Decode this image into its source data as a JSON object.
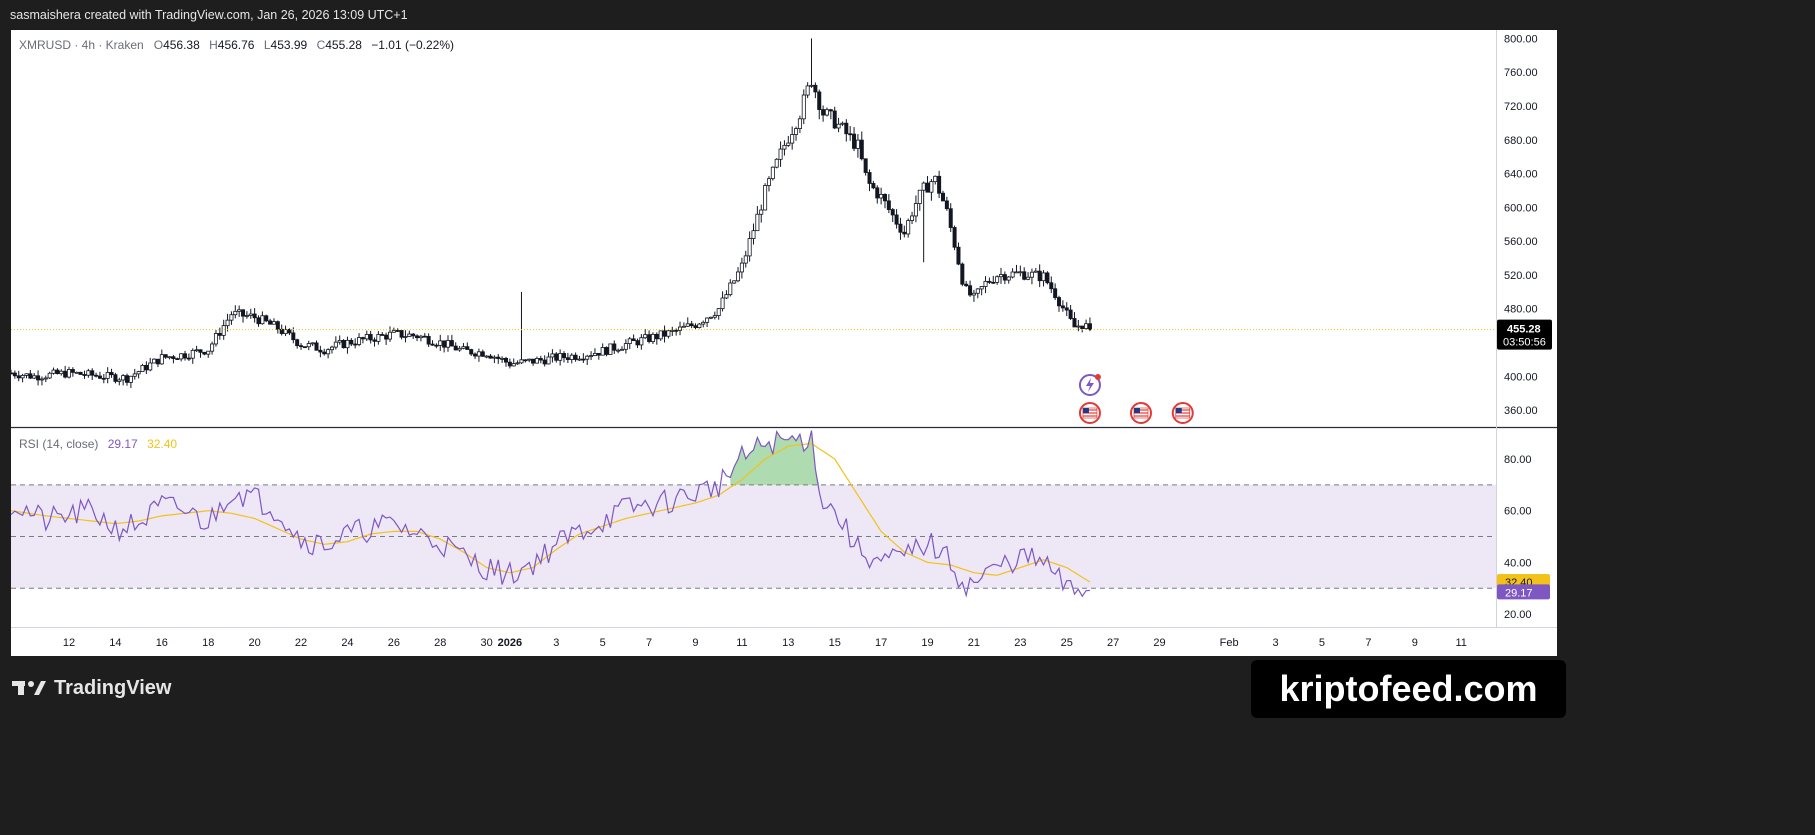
{
  "header": {
    "credit": "sasmaishera created with TradingView.com, Jan 26, 2026 13:09 UTC+1"
  },
  "legend": {
    "symbol": "XMRUSD · 4h · Kraken",
    "o_label": "O",
    "o": "456.38",
    "h_label": "H",
    "h": "456.76",
    "l_label": "L",
    "l": "453.99",
    "c_label": "C",
    "c": "455.28",
    "change": "−1.01 (−0.22%)"
  },
  "rsi_legend": {
    "label": "RSI (14, close)",
    "rsi": "29.17",
    "ma": "32.40"
  },
  "price_tag": {
    "price": "455.28",
    "countdown": "03:50:56"
  },
  "rsi_tags": {
    "ma": "32.40",
    "rsi": "29.17"
  },
  "footer": {
    "brand": "TradingView",
    "watermark": "kriptofeed.com"
  },
  "colors": {
    "candle": "#131722",
    "rsi_line": "#7e57c2",
    "rsi_ma": "#f2c21b",
    "rsi_band": "#ede7f6",
    "overbought_fill": "#4caf50",
    "price_line": "#f2c21b"
  },
  "icons": [
    "lightning-event-icon",
    "us-flag-event-icon"
  ],
  "chart_data": [
    {
      "type": "candlestick",
      "symbol": "XMRUSD",
      "ylim": [
        340,
        810
      ],
      "y_ticks": [
        "800.00",
        "760.00",
        "720.00",
        "680.00",
        "640.00",
        "600.00",
        "560.00",
        "520.00",
        "480.00",
        "400.00",
        "360.00"
      ],
      "x_ticks": [
        "12",
        "14",
        "16",
        "18",
        "20",
        "22",
        "24",
        "26",
        "28",
        "30",
        "2026",
        "3",
        "5",
        "7",
        "9",
        "11",
        "13",
        "15",
        "17",
        "19",
        "21",
        "23",
        "25",
        "27",
        "29",
        "Feb",
        "3",
        "5",
        "7",
        "9",
        "11",
        "13"
      ],
      "x_domain_days": [
        -20.5,
        43.5
      ],
      "series": [
        {
          "anchors": [
            [
              -20.5,
              404
            ],
            [
              -19.5,
              400
            ],
            [
              -18,
              404
            ],
            [
              -16.5,
              400
            ],
            [
              -15.5,
              398
            ],
            [
              -14,
              422
            ],
            [
              -13,
              426
            ],
            [
              -12,
              432
            ],
            [
              -11,
              474
            ],
            [
              -10,
              470
            ],
            [
              -9,
              457
            ],
            [
              -8,
              438
            ],
            [
              -7,
              432
            ],
            [
              -6,
              440
            ],
            [
              -5,
              445
            ],
            [
              -4,
              450
            ],
            [
              -3,
              448
            ],
            [
              -2,
              440
            ],
            [
              -1,
              430
            ],
            [
              0,
              428
            ],
            [
              1,
              415
            ],
            [
              2,
              418
            ],
            [
              3,
              422
            ],
            [
              4,
              425
            ],
            [
              5,
              430
            ],
            [
              6,
              438
            ],
            [
              7,
              445
            ],
            [
              8,
              452
            ],
            [
              9,
              462
            ],
            [
              10,
              480
            ],
            [
              11,
              530
            ],
            [
              12,
              618
            ],
            [
              12.8,
              672
            ],
            [
              13.5,
              712
            ],
            [
              14,
              752
            ],
            [
              14.5,
              712
            ],
            [
              15,
              702
            ],
            [
              16,
              672
            ],
            [
              16.4,
              630
            ],
            [
              17,
              612
            ],
            [
              17.5,
              590
            ],
            [
              18,
              570
            ],
            [
              18.4,
              600
            ],
            [
              18.8,
              620
            ],
            [
              19.3,
              635
            ],
            [
              19.8,
              598
            ],
            [
              20.2,
              553
            ],
            [
              20.6,
              503
            ],
            [
              21,
              492
            ],
            [
              21.5,
              510
            ],
            [
              22,
              520
            ],
            [
              23,
              522
            ],
            [
              24,
              518
            ],
            [
              24.5,
              498
            ],
            [
              25.3,
              458
            ],
            [
              25.7,
              462
            ],
            [
              26.0,
              455.28
            ]
          ]
        }
      ]
    },
    {
      "type": "line",
      "title": "RSI (14, close)",
      "ylim": [
        15,
        92
      ],
      "y_ticks": [
        "80.00",
        "60.00",
        "40.00",
        "20.00"
      ],
      "bands": [
        70,
        50,
        30
      ],
      "series": [
        {
          "name": "RSI",
          "anchors": [
            [
              -20.5,
              63
            ],
            [
              -19,
              56
            ],
            [
              -18,
              58
            ],
            [
              -17,
              60
            ],
            [
              -16,
              53
            ],
            [
              -15,
              55
            ],
            [
              -14,
              62
            ],
            [
              -13,
              60
            ],
            [
              -12,
              55
            ],
            [
              -11,
              68
            ],
            [
              -10,
              65
            ],
            [
              -9,
              60
            ],
            [
              -8,
              49
            ],
            [
              -7,
              47
            ],
            [
              -6,
              51
            ],
            [
              -5,
              53
            ],
            [
              -4,
              55
            ],
            [
              -3,
              51
            ],
            [
              -2,
              48
            ],
            [
              -1,
              42
            ],
            [
              0,
              38
            ],
            [
              1,
              35
            ],
            [
              2,
              40
            ],
            [
              3,
              47
            ],
            [
              4,
              52
            ],
            [
              5,
              56
            ],
            [
              6,
              61
            ],
            [
              7,
              62
            ],
            [
              8,
              64
            ],
            [
              9,
              67
            ],
            [
              10,
              70
            ],
            [
              11,
              80
            ],
            [
              12,
              86
            ],
            [
              13,
              87
            ],
            [
              14,
              88
            ],
            [
              14.5,
              63
            ],
            [
              15,
              60
            ],
            [
              16,
              45
            ],
            [
              17,
              40
            ],
            [
              18,
              42
            ],
            [
              19,
              48
            ],
            [
              20,
              40
            ],
            [
              20.6,
              31
            ],
            [
              21,
              32
            ],
            [
              22,
              38
            ],
            [
              23,
              42
            ],
            [
              24,
              40
            ],
            [
              25,
              30
            ],
            [
              25.3,
              28
            ],
            [
              25.7,
              30
            ],
            [
              26,
              29.17
            ]
          ]
        },
        {
          "name": "MA",
          "anchors": [
            [
              -20.5,
              60
            ],
            [
              -19,
              58
            ],
            [
              -18,
              57
            ],
            [
              -17,
              56
            ],
            [
              -16,
              55
            ],
            [
              -15,
              56
            ],
            [
              -14,
              58
            ],
            [
              -13,
              59
            ],
            [
              -12,
              60
            ],
            [
              -11,
              59
            ],
            [
              -10,
              57
            ],
            [
              -9,
              53
            ],
            [
              -8,
              49
            ],
            [
              -7,
              47
            ],
            [
              -6,
              48
            ],
            [
              -5,
              51
            ],
            [
              -4,
              52
            ],
            [
              -3,
              52
            ],
            [
              -2,
              49
            ],
            [
              -1,
              44
            ],
            [
              0,
              38
            ],
            [
              1,
              36
            ],
            [
              2,
              38
            ],
            [
              3,
              45
            ],
            [
              4,
              51
            ],
            [
              5,
              54
            ],
            [
              6,
              57
            ],
            [
              7,
              59
            ],
            [
              8,
              61
            ],
            [
              9,
              63
            ],
            [
              10,
              66
            ],
            [
              11,
              72
            ],
            [
              12,
              80
            ],
            [
              13,
              85
            ],
            [
              14,
              86
            ],
            [
              15,
              80
            ],
            [
              16,
              66
            ],
            [
              17,
              52
            ],
            [
              18,
              44
            ],
            [
              19,
              40
            ],
            [
              20,
              39
            ],
            [
              21,
              36
            ],
            [
              22,
              35
            ],
            [
              23,
              38
            ],
            [
              24,
              41
            ],
            [
              25,
              38
            ],
            [
              26,
              32.4
            ]
          ]
        }
      ]
    }
  ]
}
